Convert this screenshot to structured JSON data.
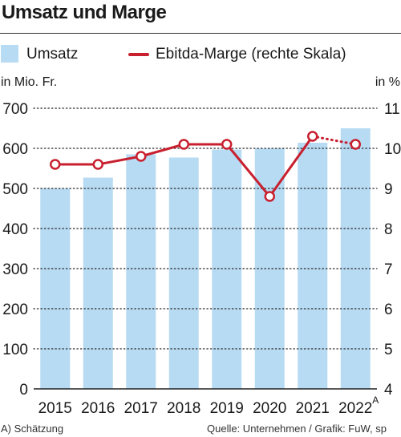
{
  "chart_data": {
    "type": "bar",
    "title": "Umsatz und Marge",
    "categories": [
      "2015",
      "2016",
      "2017",
      "2018",
      "2019",
      "2020",
      "2021",
      "2022"
    ],
    "category_superscripts": [
      "",
      "",
      "",
      "",
      "",
      "",
      "",
      "A"
    ],
    "y_left": {
      "unit_label": "in Mio. Fr.",
      "ylim": [
        0,
        700
      ],
      "ticks": [
        0,
        100,
        200,
        300,
        400,
        500,
        600,
        700
      ]
    },
    "y_right": {
      "unit_label": "in %",
      "ylim": [
        4,
        11
      ],
      "ticks": [
        4,
        5,
        6,
        7,
        8,
        9,
        10,
        11
      ]
    },
    "grid": "horizontal dotted",
    "legend_position": "top",
    "series": [
      {
        "name": "Umsatz",
        "type": "bar",
        "axis": "left",
        "color": "#b7dbf3",
        "values": [
          500,
          527,
          585,
          577,
          597,
          600,
          614,
          650
        ]
      },
      {
        "name": "Ebitda-Marge (rechte Skala)",
        "type": "line",
        "axis": "right",
        "color": "#c8202f",
        "values": [
          9.6,
          9.6,
          9.8,
          10.1,
          10.1,
          8.8,
          10.3,
          10.1
        ],
        "estimate_from_index": 6
      }
    ],
    "footnote_left": "A) Schätzung",
    "source": "Quelle: Unternehmen / Grafik: FuW, sp"
  }
}
